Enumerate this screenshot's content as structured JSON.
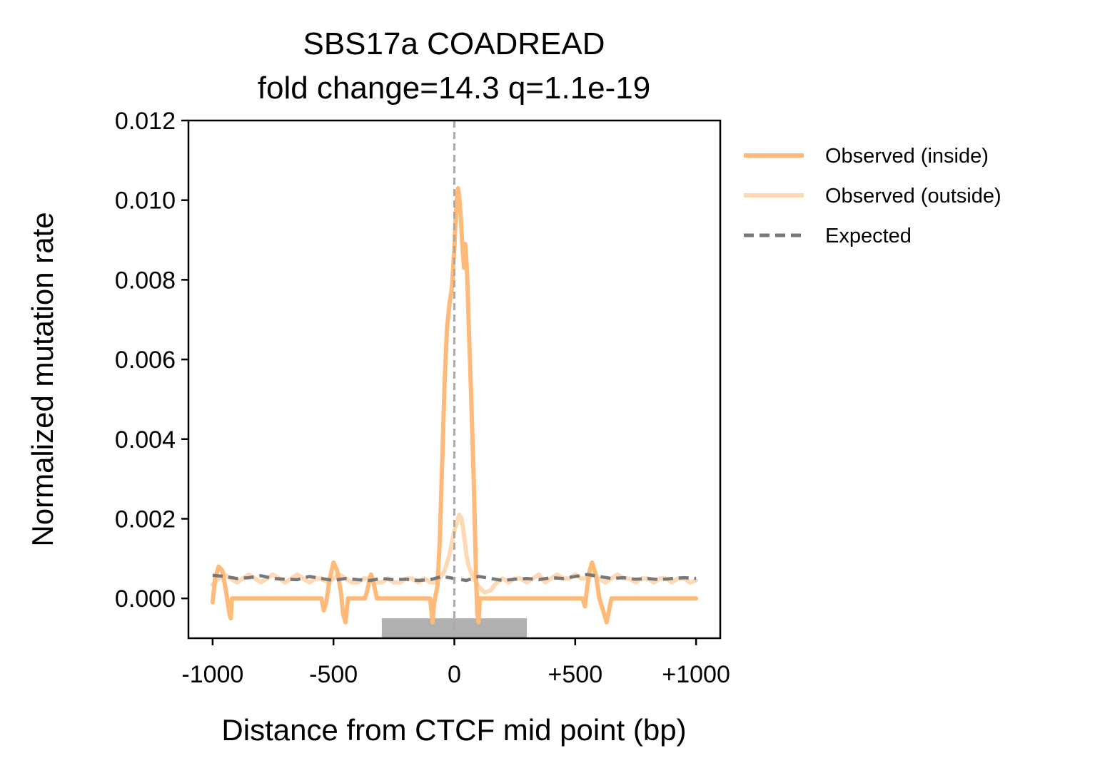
{
  "chart_data": {
    "type": "line",
    "title_lines": [
      "SBS17a COADREAD",
      "fold change=14.3 q=1.1e-19"
    ],
    "xlabel": "Distance from CTCF mid point (bp)",
    "ylabel": "Normalized mutation rate",
    "xlim": [
      -1100,
      1100
    ],
    "ylim": [
      -0.001,
      0.012
    ],
    "x_ticks": [
      {
        "value": -1000,
        "label": "-1000"
      },
      {
        "value": -500,
        "label": "-500"
      },
      {
        "value": 0,
        "label": "0"
      },
      {
        "value": 500,
        "label": "+500"
      },
      {
        "value": 1000,
        "label": "+1000"
      }
    ],
    "y_ticks": [
      {
        "value": 0.0,
        "label": "0.000"
      },
      {
        "value": 0.002,
        "label": "0.002"
      },
      {
        "value": 0.004,
        "label": "0.004"
      },
      {
        "value": 0.006,
        "label": "0.006"
      },
      {
        "value": 0.008,
        "label": "0.008"
      },
      {
        "value": 0.01,
        "label": "0.010"
      },
      {
        "value": 0.012,
        "label": "0.012"
      }
    ],
    "grid": false,
    "legend_position": "outside-right-top",
    "region_bar": {
      "x_start": -300,
      "x_end": 300,
      "y_bottom": -0.001,
      "y_top": -0.0005,
      "color": "#b0b0b0"
    },
    "center_line": {
      "x": 0,
      "color": "#aaaaaa",
      "style": "dashed"
    },
    "series": [
      {
        "name": "Observed (inside)",
        "color": "#fdba78",
        "style": "solid",
        "x": [
          -1000,
          -990,
          -975,
          -960,
          -945,
          -930,
          -925,
          -920,
          -900,
          -880,
          -850,
          -800,
          -750,
          -700,
          -650,
          -600,
          -560,
          -550,
          -540,
          -530,
          -515,
          -500,
          -485,
          -470,
          -460,
          -450,
          -445,
          -440,
          -400,
          -370,
          -360,
          -350,
          -345,
          -335,
          -320,
          -300,
          -250,
          -200,
          -150,
          -100,
          -95,
          -90,
          -85,
          -80,
          -70,
          -60,
          -50,
          -40,
          -30,
          -20,
          -10,
          0,
          5,
          10,
          15,
          20,
          25,
          30,
          35,
          40,
          45,
          50,
          55,
          60,
          70,
          80,
          90,
          95,
          100,
          103,
          105,
          110,
          150,
          200,
          250,
          300,
          350,
          400,
          450,
          500,
          530,
          540,
          550,
          560,
          570,
          585,
          600,
          620,
          630,
          640,
          650,
          700,
          750,
          800,
          850,
          900,
          950,
          1000
        ],
        "y": [
          -0.0001,
          0.0005,
          0.0008,
          0.0007,
          0.0002,
          -0.0004,
          -0.0005,
          0.0,
          0.0,
          0.0,
          0.0,
          0.0,
          0.0,
          0.0,
          0.0,
          0.0,
          0.0,
          0.0,
          -0.0003,
          -0.0001,
          0.0005,
          0.0009,
          0.0007,
          0.0002,
          -0.0004,
          -0.0006,
          -0.0003,
          0.0,
          0.0,
          0.0,
          0.0002,
          0.0005,
          0.0006,
          0.0004,
          0.0,
          0.0,
          0.0,
          0.0,
          0.0,
          0.0,
          -0.0003,
          -0.0006,
          -0.0002,
          0.0,
          0.0003,
          0.0015,
          0.0035,
          0.0055,
          0.0068,
          0.0074,
          0.0078,
          0.0088,
          0.0095,
          0.01,
          0.0103,
          0.0101,
          0.0097,
          0.0092,
          0.0087,
          0.0083,
          0.0089,
          0.0085,
          0.0078,
          0.0068,
          0.005,
          0.003,
          0.0005,
          -0.0004,
          -0.0006,
          -0.0003,
          0.0,
          0.0,
          0.0,
          0.0,
          0.0,
          0.0,
          0.0,
          0.0,
          0.0,
          0.0,
          0.0,
          -0.0002,
          0.0003,
          0.0007,
          0.0009,
          0.0006,
          0.0,
          -0.0004,
          -0.0006,
          -0.0003,
          0.0,
          0.0,
          0.0,
          0.0,
          0.0,
          0.0,
          0.0,
          0.0
        ]
      },
      {
        "name": "Observed (outside)",
        "color": "#fdd9b5",
        "style": "solid",
        "x": [
          -1000,
          -975,
          -950,
          -925,
          -900,
          -875,
          -850,
          -825,
          -800,
          -775,
          -750,
          -725,
          -700,
          -675,
          -650,
          -625,
          -600,
          -575,
          -550,
          -525,
          -500,
          -475,
          -450,
          -425,
          -400,
          -375,
          -350,
          -325,
          -300,
          -275,
          -250,
          -225,
          -200,
          -175,
          -150,
          -125,
          -100,
          -80,
          -60,
          -40,
          -20,
          0,
          10,
          20,
          30,
          40,
          50,
          60,
          80,
          100,
          125,
          150,
          175,
          200,
          225,
          250,
          275,
          300,
          325,
          350,
          375,
          400,
          425,
          450,
          475,
          500,
          525,
          550,
          575,
          600,
          625,
          650,
          675,
          700,
          725,
          750,
          775,
          800,
          825,
          850,
          875,
          900,
          925,
          950,
          975,
          1000
        ],
        "y": [
          0.00035,
          0.0005,
          0.0006,
          0.0005,
          0.0004,
          0.0005,
          0.0006,
          0.0005,
          0.0004,
          0.0005,
          0.0006,
          0.0005,
          0.0004,
          0.0005,
          0.0006,
          0.0005,
          0.0004,
          0.0005,
          0.0005,
          0.0004,
          0.0005,
          0.0006,
          0.0005,
          0.0004,
          0.0004,
          0.0005,
          0.0005,
          0.0004,
          0.0004,
          0.0005,
          0.0004,
          0.0004,
          0.0005,
          0.0005,
          0.0004,
          0.0005,
          0.0004,
          0.0004,
          0.0005,
          0.0007,
          0.0011,
          0.0017,
          0.0019,
          0.0021,
          0.002,
          0.0016,
          0.0011,
          0.0008,
          0.0005,
          0.0003,
          0.00015,
          0.0002,
          0.0004,
          0.0005,
          0.0004,
          0.0005,
          0.0005,
          0.0004,
          0.0005,
          0.0006,
          0.0004,
          0.0005,
          0.0006,
          0.0005,
          0.0005,
          0.0006,
          0.0005,
          0.0005,
          0.0006,
          0.0005,
          0.0004,
          0.0005,
          0.0006,
          0.0005,
          0.0005,
          0.0004,
          0.0005,
          0.0005,
          0.0004,
          0.0005,
          0.0005,
          0.0004,
          0.0005,
          0.0005,
          0.0004,
          0.00045
        ]
      },
      {
        "name": "Expected",
        "color": "#777777",
        "style": "dashed",
        "x": [
          -1000,
          -950,
          -900,
          -850,
          -800,
          -750,
          -700,
          -650,
          -600,
          -550,
          -500,
          -450,
          -400,
          -350,
          -300,
          -250,
          -200,
          -150,
          -100,
          -50,
          0,
          50,
          100,
          150,
          200,
          250,
          300,
          350,
          400,
          450,
          500,
          550,
          600,
          650,
          700,
          750,
          800,
          850,
          900,
          950,
          1000
        ],
        "y": [
          0.00058,
          0.00055,
          0.0005,
          0.00052,
          0.00057,
          0.0005,
          0.00048,
          0.00047,
          0.00055,
          0.0005,
          0.00045,
          0.0005,
          0.00047,
          0.00045,
          0.0005,
          0.00047,
          0.00048,
          0.00045,
          0.00047,
          0.00055,
          0.0005,
          0.00045,
          0.00055,
          0.0005,
          0.00045,
          0.00048,
          0.0005,
          0.00047,
          0.00052,
          0.0005,
          0.00055,
          0.0006,
          0.00055,
          0.0005,
          0.00052,
          0.00048,
          0.0005,
          0.00047,
          0.0005,
          0.00052,
          0.0005
        ]
      }
    ]
  }
}
